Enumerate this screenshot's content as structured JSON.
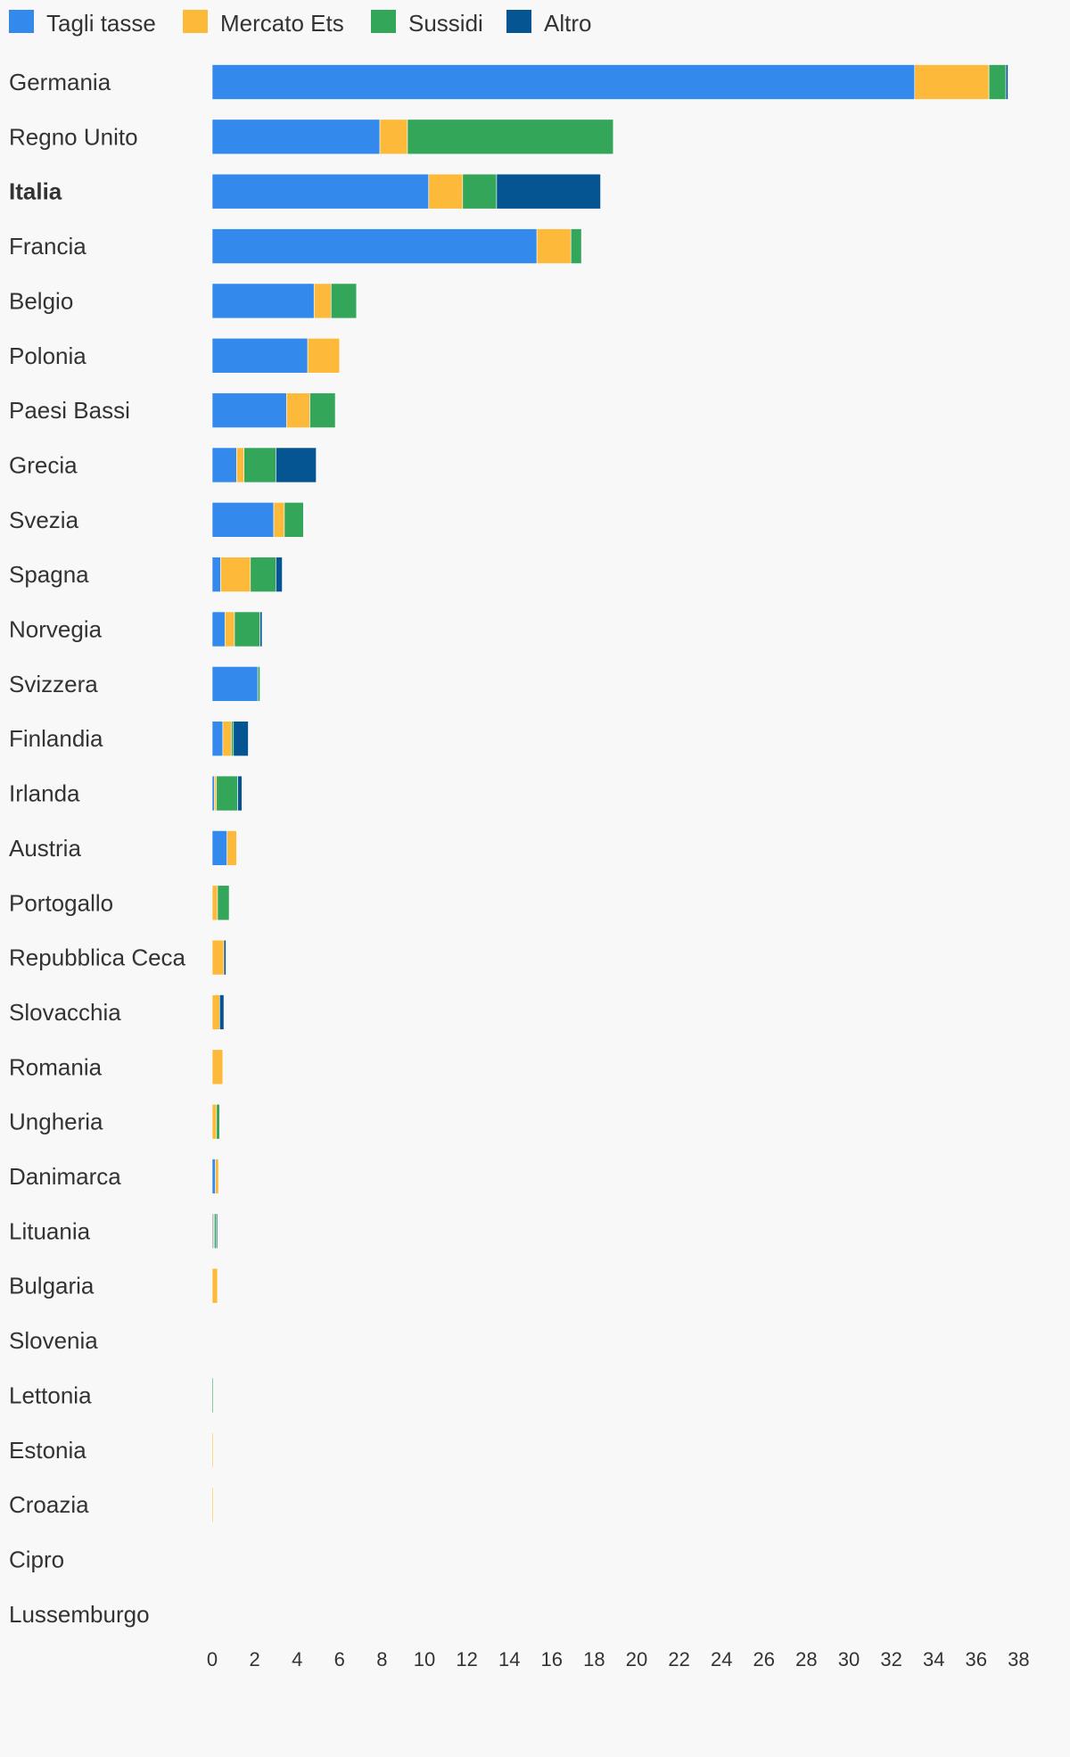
{
  "chart_data": {
    "type": "bar",
    "orientation": "horizontal",
    "stacked": true,
    "title": "",
    "xlabel": "",
    "ylabel": "",
    "xlim": [
      0,
      38
    ],
    "x_ticks": [
      0,
      2,
      4,
      6,
      8,
      10,
      12,
      14,
      16,
      18,
      20,
      22,
      24,
      26,
      28,
      30,
      32,
      34,
      36,
      38
    ],
    "grid": false,
    "legend_position": "top-left",
    "highlight_category": "Italia",
    "categories": [
      "Germania",
      "Regno Unito",
      "Italia",
      "Francia",
      "Belgio",
      "Polonia",
      "Paesi Bassi",
      "Grecia",
      "Svezia",
      "Spagna",
      "Norvegia",
      "Svizzera",
      "Finlandia",
      "Irlanda",
      "Austria",
      "Portogallo",
      "Repubblica Ceca",
      "Slovacchia",
      "Romania",
      "Ungheria",
      "Danimarca",
      "Lituania",
      "Bulgaria",
      "Slovenia",
      "Lettonia",
      "Estonia",
      "Croazia",
      "Cipro",
      "Lussemburgo"
    ],
    "series": [
      {
        "name": "Tagli tasse",
        "color": "#3389ec",
        "values": [
          33.1,
          7.9,
          10.2,
          15.3,
          4.8,
          4.5,
          3.5,
          1.15,
          2.9,
          0.4,
          0.6,
          2.15,
          0.5,
          0.1,
          0.7,
          0,
          0,
          0,
          0,
          0,
          0.15,
          0.05,
          0,
          0,
          0,
          0,
          0,
          0,
          0
        ]
      },
      {
        "name": "Mercato Ets",
        "color": "#fdb93a",
        "values": [
          3.5,
          1.3,
          1.6,
          1.6,
          0.8,
          1.5,
          1.1,
          0.35,
          0.5,
          1.4,
          0.45,
          0,
          0.4,
          0.1,
          0.45,
          0.25,
          0.55,
          0.35,
          0.5,
          0.2,
          0.15,
          0.05,
          0.25,
          0,
          0,
          0.05,
          0.05,
          0,
          0
        ]
      },
      {
        "name": "Sussidi",
        "color": "#34a65a",
        "values": [
          0.8,
          9.7,
          1.6,
          0.5,
          1.2,
          0,
          1.2,
          1.5,
          0.9,
          1.2,
          1.2,
          0.1,
          0.1,
          1.0,
          0,
          0.55,
          0,
          0,
          0,
          0.15,
          0,
          0.1,
          0,
          0,
          0.05,
          0,
          0,
          0,
          0
        ]
      },
      {
        "name": "Altro",
        "color": "#045592",
        "values": [
          0.1,
          0,
          4.9,
          0,
          0,
          0,
          0,
          1.9,
          0,
          0.3,
          0.1,
          0,
          0.7,
          0.2,
          0,
          0,
          0.1,
          0.2,
          0,
          0,
          0,
          0.05,
          0,
          0,
          0,
          0,
          0,
          0,
          0
        ]
      }
    ]
  }
}
